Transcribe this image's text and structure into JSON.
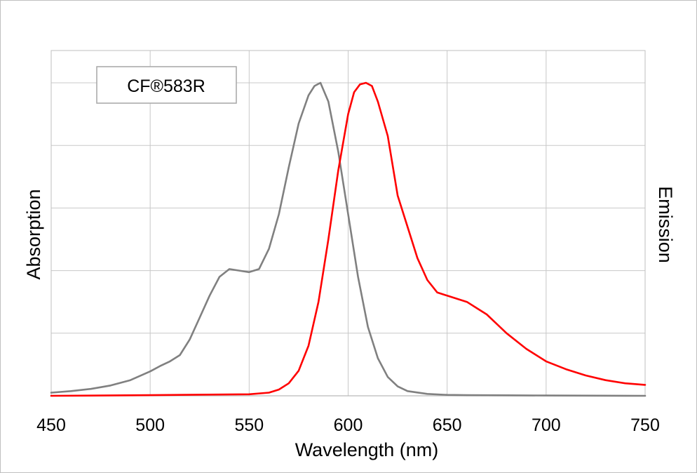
{
  "chart_data": {
    "type": "line",
    "title": "",
    "xlabel": "Wavelength (nm)",
    "ylabel_left": "Absorption",
    "ylabel_right": "Emission",
    "legend_label": "CF®583R",
    "legend_position": "top-left",
    "xlim": [
      450,
      750
    ],
    "ylim": [
      0,
      1
    ],
    "x_ticks": [
      450,
      500,
      550,
      600,
      650,
      700,
      750
    ],
    "y_gridlines": 5,
    "grid": true,
    "series": [
      {
        "color": "#808080",
        "x": [
          450,
          460,
          470,
          480,
          490,
          500,
          505,
          510,
          515,
          520,
          525,
          530,
          535,
          540,
          545,
          550,
          555,
          560,
          565,
          570,
          575,
          580,
          583,
          586,
          590,
          595,
          600,
          605,
          610,
          615,
          620,
          625,
          630,
          640,
          650,
          660,
          680,
          700,
          750
        ],
        "y": [
          0.01,
          0.015,
          0.022,
          0.033,
          0.05,
          0.078,
          0.095,
          0.11,
          0.13,
          0.18,
          0.25,
          0.32,
          0.38,
          0.405,
          0.4,
          0.395,
          0.405,
          0.47,
          0.58,
          0.73,
          0.87,
          0.96,
          0.99,
          1.0,
          0.94,
          0.78,
          0.58,
          0.38,
          0.22,
          0.12,
          0.06,
          0.03,
          0.015,
          0.006,
          0.003,
          0.002,
          0.0015,
          0.001,
          0.0
        ]
      },
      {
        "color": "#ff0000",
        "x": [
          450,
          500,
          550,
          560,
          565,
          570,
          575,
          580,
          585,
          590,
          595,
          600,
          603,
          606,
          609,
          612,
          615,
          620,
          625,
          630,
          635,
          640,
          645,
          650,
          655,
          660,
          665,
          670,
          675,
          680,
          690,
          700,
          710,
          720,
          730,
          740,
          750
        ],
        "y": [
          0.0,
          0.002,
          0.005,
          0.01,
          0.02,
          0.04,
          0.08,
          0.16,
          0.3,
          0.5,
          0.72,
          0.9,
          0.97,
          0.995,
          1.0,
          0.99,
          0.94,
          0.83,
          0.64,
          0.54,
          0.44,
          0.37,
          0.33,
          0.32,
          0.31,
          0.3,
          0.28,
          0.26,
          0.23,
          0.2,
          0.15,
          0.11,
          0.085,
          0.065,
          0.05,
          0.04,
          0.035
        ]
      }
    ]
  }
}
